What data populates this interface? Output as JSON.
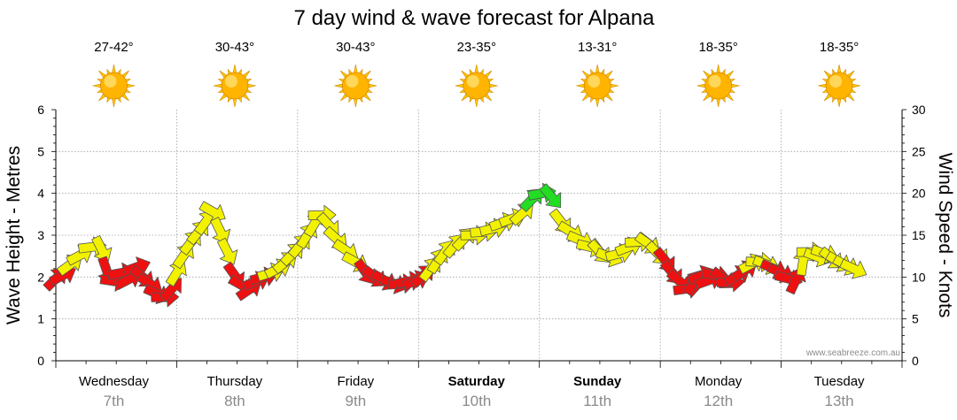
{
  "chart_data": {
    "type": "line",
    "title": "7 day wind & wave forecast for Alpana",
    "y_left": {
      "label": "Wave Height - Metres",
      "ticks": [
        0,
        1,
        2,
        3,
        4,
        5,
        6
      ],
      "range": [
        0,
        6
      ]
    },
    "y_right": {
      "label": "Wind Speed - Knots",
      "ticks": [
        0,
        5,
        10,
        15,
        20,
        25,
        30
      ],
      "range": [
        0,
        30
      ]
    },
    "grid": true,
    "watermark": "www.seabreeze.com.au",
    "legend": "none",
    "days": [
      {
        "name": "Wednesday",
        "date": "7th",
        "bold": false,
        "temp": "27-42°"
      },
      {
        "name": "Thursday",
        "date": "8th",
        "bold": false,
        "temp": "30-43°"
      },
      {
        "name": "Friday",
        "date": "9th",
        "bold": false,
        "temp": "30-43°"
      },
      {
        "name": "Saturday",
        "date": "10th",
        "bold": true,
        "temp": "23-35°"
      },
      {
        "name": "Sunday",
        "date": "11th",
        "bold": true,
        "temp": "13-31°"
      },
      {
        "name": "Monday",
        "date": "12th",
        "bold": false,
        "temp": "18-35°"
      },
      {
        "name": "Tuesday",
        "date": "13th",
        "bold": false,
        "temp": "18-35°"
      }
    ],
    "weather_icon": "sun-icon",
    "colors": {
      "red": "#ee1111",
      "yellow": "#f2f200",
      "green": "#22dd22",
      "outline": "#555555",
      "sun_core": "#ffb400",
      "sun_rays": "#ffc800",
      "grid": "#a0a0a0"
    },
    "series": [
      {
        "name": "",
        "x_unit": "days",
        "y_unit": "knots",
        "points": [
          {
            "x": 0.0,
            "y": 9.8,
            "color": "red"
          },
          {
            "x": 0.06,
            "y": 10.2,
            "color": "red"
          },
          {
            "x": 0.12,
            "y": 11.5,
            "color": "yellow"
          },
          {
            "x": 0.2,
            "y": 12.6,
            "color": "yellow"
          },
          {
            "x": 0.3,
            "y": 13.6,
            "color": "yellow"
          },
          {
            "x": 0.38,
            "y": 13.3,
            "color": "yellow"
          },
          {
            "x": 0.42,
            "y": 10.8,
            "color": "red"
          },
          {
            "x": 0.48,
            "y": 9.5,
            "color": "red"
          },
          {
            "x": 0.54,
            "y": 10.5,
            "color": "red"
          },
          {
            "x": 0.6,
            "y": 9.7,
            "color": "red"
          },
          {
            "x": 0.67,
            "y": 11.2,
            "color": "red"
          },
          {
            "x": 0.72,
            "y": 10.0,
            "color": "red"
          },
          {
            "x": 0.78,
            "y": 9.2,
            "color": "red"
          },
          {
            "x": 0.84,
            "y": 8.0,
            "color": "red"
          },
          {
            "x": 0.9,
            "y": 7.6,
            "color": "red"
          },
          {
            "x": 0.96,
            "y": 8.6,
            "color": "red"
          },
          {
            "x": 1.0,
            "y": 10.5,
            "color": "yellow"
          },
          {
            "x": 1.06,
            "y": 12.6,
            "color": "yellow"
          },
          {
            "x": 1.12,
            "y": 14.2,
            "color": "yellow"
          },
          {
            "x": 1.18,
            "y": 15.4,
            "color": "yellow"
          },
          {
            "x": 1.24,
            "y": 16.6,
            "color": "yellow"
          },
          {
            "x": 1.3,
            "y": 17.8,
            "color": "yellow"
          },
          {
            "x": 1.36,
            "y": 15.5,
            "color": "yellow"
          },
          {
            "x": 1.42,
            "y": 13.0,
            "color": "yellow"
          },
          {
            "x": 1.48,
            "y": 10.2,
            "color": "red"
          },
          {
            "x": 1.54,
            "y": 9.0,
            "color": "red"
          },
          {
            "x": 1.6,
            "y": 8.5,
            "color": "red"
          },
          {
            "x": 1.66,
            "y": 9.5,
            "color": "red"
          },
          {
            "x": 1.72,
            "y": 10.0,
            "color": "red"
          },
          {
            "x": 1.78,
            "y": 10.5,
            "color": "yellow"
          },
          {
            "x": 1.84,
            "y": 11.0,
            "color": "yellow"
          },
          {
            "x": 1.9,
            "y": 11.8,
            "color": "yellow"
          },
          {
            "x": 1.96,
            "y": 12.8,
            "color": "yellow"
          },
          {
            "x": 2.02,
            "y": 13.8,
            "color": "yellow"
          },
          {
            "x": 2.08,
            "y": 15.0,
            "color": "yellow"
          },
          {
            "x": 2.14,
            "y": 16.4,
            "color": "yellow"
          },
          {
            "x": 2.2,
            "y": 17.4,
            "color": "yellow"
          },
          {
            "x": 2.26,
            "y": 16.2,
            "color": "yellow"
          },
          {
            "x": 2.32,
            "y": 14.6,
            "color": "yellow"
          },
          {
            "x": 2.4,
            "y": 13.2,
            "color": "yellow"
          },
          {
            "x": 2.48,
            "y": 11.8,
            "color": "yellow"
          },
          {
            "x": 2.56,
            "y": 10.6,
            "color": "red"
          },
          {
            "x": 2.64,
            "y": 10.0,
            "color": "red"
          },
          {
            "x": 2.72,
            "y": 9.6,
            "color": "red"
          },
          {
            "x": 2.8,
            "y": 9.2,
            "color": "red"
          },
          {
            "x": 2.86,
            "y": 9.2,
            "color": "red"
          },
          {
            "x": 2.92,
            "y": 9.5,
            "color": "red"
          },
          {
            "x": 2.98,
            "y": 9.6,
            "color": "red"
          },
          {
            "x": 3.04,
            "y": 10.2,
            "color": "red"
          },
          {
            "x": 3.1,
            "y": 11.0,
            "color": "yellow"
          },
          {
            "x": 3.16,
            "y": 12.0,
            "color": "yellow"
          },
          {
            "x": 3.22,
            "y": 13.0,
            "color": "yellow"
          },
          {
            "x": 3.3,
            "y": 13.8,
            "color": "yellow"
          },
          {
            "x": 3.38,
            "y": 14.6,
            "color": "yellow"
          },
          {
            "x": 3.46,
            "y": 15.0,
            "color": "yellow"
          },
          {
            "x": 3.54,
            "y": 15.4,
            "color": "yellow"
          },
          {
            "x": 3.62,
            "y": 15.8,
            "color": "yellow"
          },
          {
            "x": 3.7,
            "y": 16.5,
            "color": "yellow"
          },
          {
            "x": 3.78,
            "y": 17.0,
            "color": "yellow"
          },
          {
            "x": 3.86,
            "y": 17.6,
            "color": "yellow"
          },
          {
            "x": 3.94,
            "y": 19.3,
            "color": "green"
          },
          {
            "x": 4.02,
            "y": 20.0,
            "color": "green"
          },
          {
            "x": 4.1,
            "y": 19.6,
            "color": "green"
          },
          {
            "x": 4.18,
            "y": 16.6,
            "color": "yellow"
          },
          {
            "x": 4.26,
            "y": 15.4,
            "color": "yellow"
          },
          {
            "x": 4.34,
            "y": 14.4,
            "color": "yellow"
          },
          {
            "x": 4.42,
            "y": 13.6,
            "color": "yellow"
          },
          {
            "x": 4.5,
            "y": 13.0,
            "color": "yellow"
          },
          {
            "x": 4.58,
            "y": 12.4,
            "color": "yellow"
          },
          {
            "x": 4.66,
            "y": 12.8,
            "color": "yellow"
          },
          {
            "x": 4.74,
            "y": 13.6,
            "color": "yellow"
          },
          {
            "x": 4.82,
            "y": 14.2,
            "color": "yellow"
          },
          {
            "x": 4.9,
            "y": 14.0,
            "color": "yellow"
          },
          {
            "x": 4.98,
            "y": 12.8,
            "color": "yellow"
          },
          {
            "x": 5.04,
            "y": 12.0,
            "color": "red"
          },
          {
            "x": 5.1,
            "y": 10.5,
            "color": "red"
          },
          {
            "x": 5.16,
            "y": 9.5,
            "color": "red"
          },
          {
            "x": 5.22,
            "y": 8.6,
            "color": "red"
          },
          {
            "x": 5.28,
            "y": 9.4,
            "color": "red"
          },
          {
            "x": 5.34,
            "y": 10.2,
            "color": "red"
          },
          {
            "x": 5.4,
            "y": 9.6,
            "color": "red"
          },
          {
            "x": 5.46,
            "y": 10.2,
            "color": "red"
          },
          {
            "x": 5.52,
            "y": 9.8,
            "color": "red"
          },
          {
            "x": 5.58,
            "y": 9.4,
            "color": "red"
          },
          {
            "x": 5.64,
            "y": 10.2,
            "color": "red"
          },
          {
            "x": 5.7,
            "y": 10.8,
            "color": "red"
          },
          {
            "x": 5.76,
            "y": 11.6,
            "color": "yellow"
          },
          {
            "x": 5.82,
            "y": 11.8,
            "color": "yellow"
          },
          {
            "x": 5.88,
            "y": 11.5,
            "color": "yellow"
          },
          {
            "x": 5.94,
            "y": 11.0,
            "color": "red"
          },
          {
            "x": 6.0,
            "y": 10.5,
            "color": "red"
          },
          {
            "x": 6.06,
            "y": 9.8,
            "color": "red"
          },
          {
            "x": 6.12,
            "y": 9.6,
            "color": "red"
          },
          {
            "x": 6.18,
            "y": 11.8,
            "color": "yellow"
          },
          {
            "x": 6.24,
            "y": 13.0,
            "color": "yellow"
          },
          {
            "x": 6.3,
            "y": 12.4,
            "color": "yellow"
          },
          {
            "x": 6.36,
            "y": 12.8,
            "color": "yellow"
          },
          {
            "x": 6.42,
            "y": 12.2,
            "color": "yellow"
          },
          {
            "x": 6.48,
            "y": 11.8,
            "color": "yellow"
          },
          {
            "x": 6.54,
            "y": 11.4,
            "color": "yellow"
          },
          {
            "x": 6.6,
            "y": 11.0,
            "color": "yellow"
          }
        ]
      }
    ]
  }
}
